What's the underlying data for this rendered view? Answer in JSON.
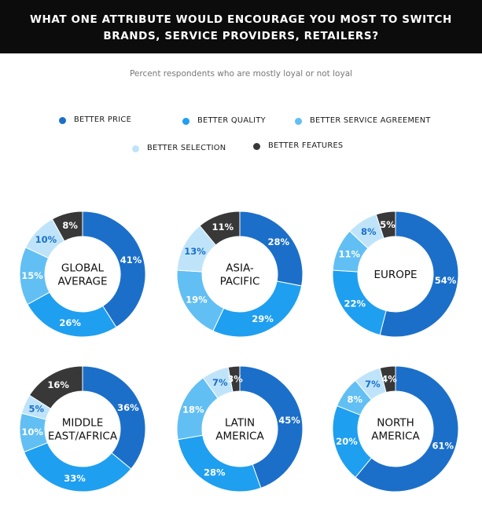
{
  "header": {
    "title_line1": "WHAT ONE ATTRIBUTE WOULD ENCOURAGE YOU MOST TO SWITCH",
    "title_line2": "BRANDS, SERVICE PROVIDERS, RETAILERS?"
  },
  "subtitle": "Percent respondents who are mostly loyal or not loyal",
  "legend": [
    {
      "label": "BETTER PRICE",
      "color": "#1b6fc9"
    },
    {
      "label": "BETTER QUALITY",
      "color": "#1f9ff0"
    },
    {
      "label": "BETTER SERVICE AGREEMENT",
      "color": "#62bff3"
    },
    {
      "label": "BETTER SELECTION",
      "color": "#bfe4fa"
    },
    {
      "label": "BETTER FEATURES",
      "color": "#383838"
    }
  ],
  "chart_data": [
    {
      "type": "pie",
      "donut": true,
      "label_lines": [
        "GLOBAL",
        "AVERAGE"
      ],
      "categories": [
        "BETTER PRICE",
        "BETTER QUALITY",
        "BETTER SERVICE AGREEMENT",
        "BETTER SELECTION",
        "BETTER FEATURES"
      ],
      "values": [
        41,
        26,
        15,
        10,
        8
      ],
      "labels": [
        "41%",
        "26%",
        "15%",
        "10%",
        "8%"
      ]
    },
    {
      "type": "pie",
      "donut": true,
      "label_lines": [
        "ASIA-",
        "PACIFIC"
      ],
      "categories": [
        "BETTER PRICE",
        "BETTER QUALITY",
        "BETTER SERVICE AGREEMENT",
        "BETTER SELECTION",
        "BETTER FEATURES"
      ],
      "values": [
        28,
        29,
        19,
        13,
        11
      ],
      "labels": [
        "28%",
        "29%",
        "19%",
        "13%",
        "11%"
      ]
    },
    {
      "type": "pie",
      "donut": true,
      "label_lines": [
        "EUROPE"
      ],
      "categories": [
        "BETTER PRICE",
        "BETTER QUALITY",
        "BETTER SERVICE AGREEMENT",
        "BETTER SELECTION",
        "BETTER FEATURES"
      ],
      "values": [
        54,
        22,
        11,
        8,
        5
      ],
      "labels": [
        "54%",
        "22%",
        "11%",
        "8%",
        "5%"
      ]
    },
    {
      "type": "pie",
      "donut": true,
      "label_lines": [
        "MIDDLE",
        "EAST/AFRICA"
      ],
      "categories": [
        "BETTER PRICE",
        "BETTER QUALITY",
        "BETTER SERVICE AGREEMENT",
        "BETTER SELECTION",
        "BETTER FEATURES"
      ],
      "values": [
        36,
        33,
        10,
        5,
        16
      ],
      "labels": [
        "36%",
        "33%",
        "10%",
        "5%",
        "16%"
      ]
    },
    {
      "type": "pie",
      "donut": true,
      "label_lines": [
        "LATIN",
        "AMERICA"
      ],
      "categories": [
        "BETTER PRICE",
        "BETTER QUALITY",
        "BETTER SERVICE AGREEMENT",
        "BETTER SELECTION",
        "BETTER FEATURES"
      ],
      "values": [
        45,
        28,
        18,
        7,
        3
      ],
      "labels": [
        "45%",
        "28%",
        "18%",
        "7%",
        "3%"
      ]
    },
    {
      "type": "pie",
      "donut": true,
      "label_lines": [
        "NORTH",
        "AMERICA"
      ],
      "categories": [
        "BETTER PRICE",
        "BETTER QUALITY",
        "BETTER SERVICE AGREEMENT",
        "BETTER SELECTION",
        "BETTER FEATURES"
      ],
      "values": [
        61,
        20,
        8,
        7,
        4
      ],
      "labels": [
        "61%",
        "20%",
        "8%",
        "7%",
        "4%"
      ]
    }
  ]
}
